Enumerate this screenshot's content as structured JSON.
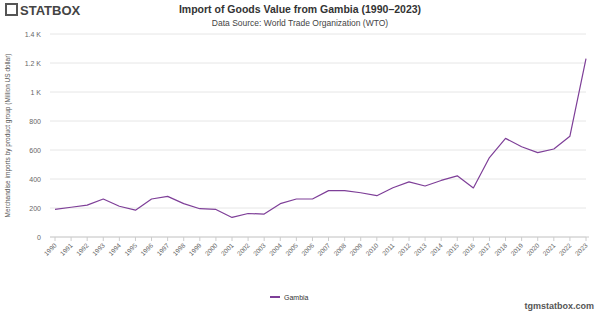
{
  "chart_data": {
    "type": "line",
    "title": "Import of Goods Value from Gambia (1990–2023)",
    "subtitle": "Data Source: World Trade Organization (WTO)",
    "y_label": "Merchandise imports by product group (Million US dollar)",
    "annotations": [
      "STATBOX",
      "tgmstatbox.com"
    ],
    "categories": [
      "1990",
      "1991",
      "1992",
      "1993",
      "1994",
      "1995",
      "1996",
      "1997",
      "1998",
      "1999",
      "2000",
      "2001",
      "2002",
      "2003",
      "2004",
      "2005",
      "2006",
      "2007",
      "2008",
      "2009",
      "2010",
      "2011",
      "2012",
      "2013",
      "2014",
      "2015",
      "2016",
      "2017",
      "2018",
      "2019",
      "2020",
      "2021",
      "2022",
      "2023"
    ],
    "series": [
      {
        "name": "Gambia",
        "color": "#7e3f98",
        "values": [
          190,
          205,
          220,
          262,
          212,
          185,
          262,
          280,
          230,
          195,
          190,
          135,
          162,
          158,
          230,
          262,
          262,
          320,
          320,
          305,
          285,
          340,
          380,
          352,
          390,
          422,
          338,
          548,
          680,
          622,
          582,
          607,
          695,
          1230
        ]
      }
    ],
    "ylim": [
      0,
      1400
    ],
    "yticks": [
      0,
      200,
      400,
      600,
      800,
      {
        "value": 1000,
        "label": "1 K"
      },
      {
        "value": 1200,
        "label": "1.2 K"
      },
      {
        "value": 1400,
        "label": "1.4 K"
      }
    ],
    "grid": true,
    "legend": "bottom"
  }
}
